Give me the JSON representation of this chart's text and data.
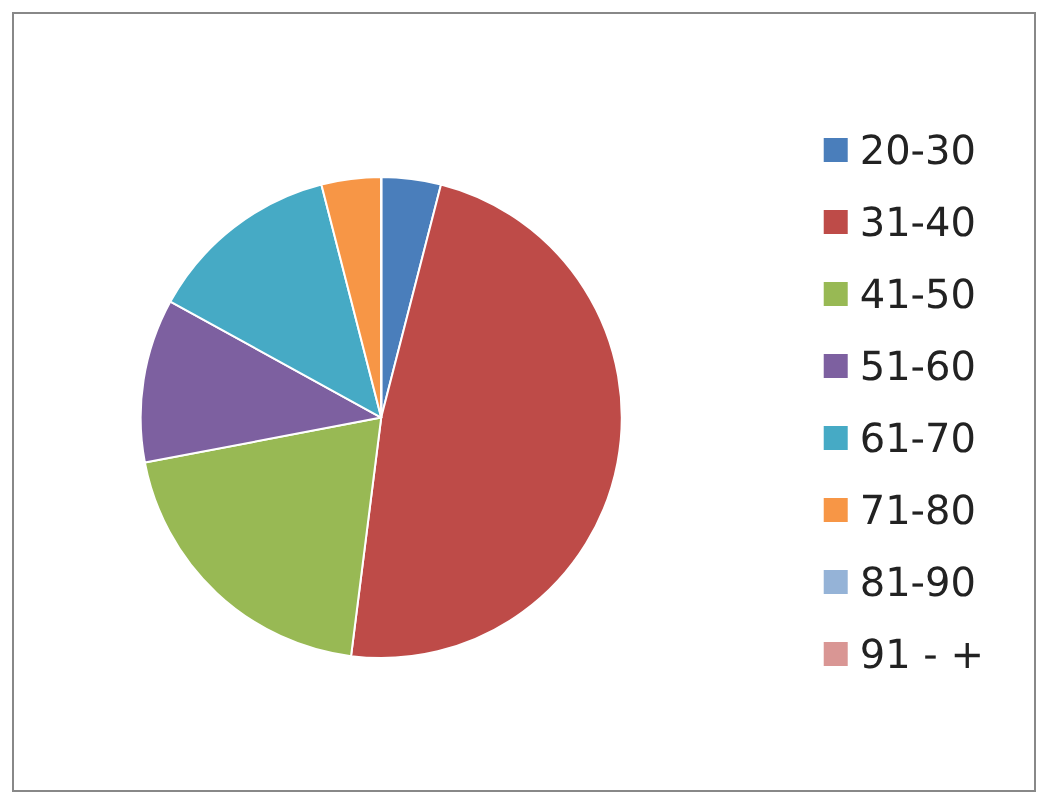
{
  "chart_data": {
    "type": "pie",
    "categories": [
      "20-30",
      "31-40",
      "41-50",
      "51-60",
      "61-70",
      "71-80",
      "81-90",
      "91 - +"
    ],
    "values": [
      4,
      48,
      20,
      11,
      13,
      4,
      0,
      0
    ],
    "colors": [
      "#4a7ebb",
      "#be4b48",
      "#98b954",
      "#7d60a0",
      "#46aac5",
      "#f79646",
      "#95b3d7",
      "#d99694"
    ],
    "legend": "right"
  }
}
